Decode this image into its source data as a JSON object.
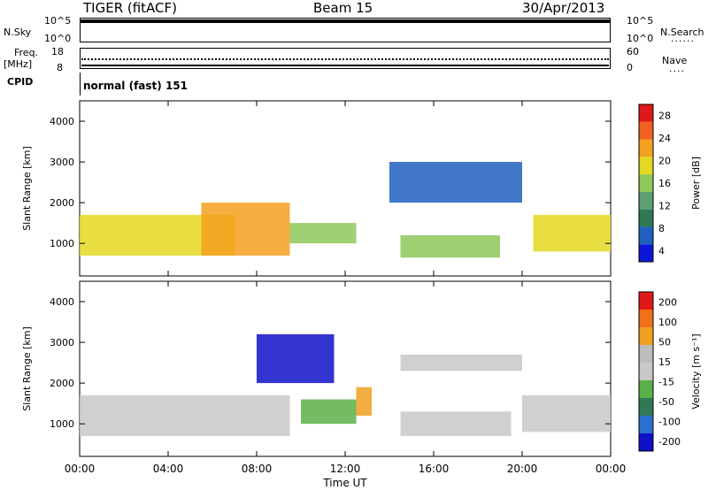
{
  "header": {
    "radar": "TIGER (fitACF)",
    "beam": "Beam 15",
    "date": "30/Apr/2013"
  },
  "summary": {
    "nsky_label": "N.Sky",
    "nsearch_label": "N.Search",
    "freq_label_1": "Freq.",
    "freq_label_2": "[MHz]",
    "nave_label": "Nave",
    "cpid_label": "CPID",
    "cpid_text": "normal (fast) 151",
    "noise_left_ticks": [
      "10^5",
      "10^0"
    ],
    "noise_right_ticks": [
      "10^5",
      "10^0"
    ],
    "freq_left_ticks": [
      "18",
      "8"
    ],
    "nave_right_ticks": [
      "60",
      "0"
    ]
  },
  "chart_data": [
    {
      "type": "heatmap",
      "ylabel": "Slant Range [km]",
      "y_ticks": [
        "1000",
        "2000",
        "3000",
        "4000"
      ],
      "ylim": [
        200,
        4500
      ],
      "colorbar_label": "Power [dB]",
      "colorbar_ticks": [
        "28",
        "24",
        "20",
        "16",
        "12",
        "8",
        "4"
      ],
      "colors": [
        "#0a16d8",
        "#2060c0",
        "#2f7a55",
        "#5aa070",
        "#8ec85a",
        "#e4d820",
        "#f4a020",
        "#f06020",
        "#e01818"
      ],
      "bands": [
        {
          "x0": 0.0,
          "x1": 7.0,
          "y0": 700,
          "y1": 1700,
          "level": 5
        },
        {
          "x0": 5.5,
          "x1": 9.5,
          "y0": 700,
          "y1": 2000,
          "level": 6
        },
        {
          "x0": 9.5,
          "x1": 12.5,
          "y0": 1000,
          "y1": 1500,
          "level": 4
        },
        {
          "x0": 14.5,
          "x1": 19.0,
          "y0": 650,
          "y1": 1200,
          "level": 4
        },
        {
          "x0": 14.0,
          "x1": 20.0,
          "y0": 2000,
          "y1": 3000,
          "level": 1
        },
        {
          "x0": 20.5,
          "x1": 24.0,
          "y0": 800,
          "y1": 1700,
          "level": 5
        }
      ]
    },
    {
      "type": "heatmap",
      "ylabel": "Slant Range [km]",
      "y_ticks": [
        "1000",
        "2000",
        "3000",
        "4000"
      ],
      "ylim": [
        200,
        4500
      ],
      "colorbar_label": "Velocity [m s⁻¹]",
      "colorbar_ticks": [
        "200",
        "100",
        "50",
        "15",
        "-15",
        "-50",
        "-100",
        "-200"
      ],
      "colors": [
        "#1010c8",
        "#2b6fd0",
        "#2f7a55",
        "#5ab048",
        "#c8c8c8",
        "#bdbdbd",
        "#f0a020",
        "#f07018",
        "#e01818"
      ],
      "bands": [
        {
          "x0": 0.0,
          "x1": 9.5,
          "y0": 700,
          "y1": 1700,
          "level": 4
        },
        {
          "x0": 8.0,
          "x1": 11.5,
          "y0": 2000,
          "y1": 3200,
          "level": 0
        },
        {
          "x0": 10.0,
          "x1": 12.5,
          "y0": 1000,
          "y1": 1600,
          "level": 3
        },
        {
          "x0": 12.5,
          "x1": 13.2,
          "y0": 1200,
          "y1": 1900,
          "level": 6
        },
        {
          "x0": 14.5,
          "x1": 19.5,
          "y0": 700,
          "y1": 1300,
          "level": 4
        },
        {
          "x0": 14.5,
          "x1": 20.0,
          "y0": 2300,
          "y1": 2700,
          "level": 4
        },
        {
          "x0": 20.0,
          "x1": 24.0,
          "y0": 800,
          "y1": 1700,
          "level": 4
        }
      ]
    }
  ],
  "x_ticks": [
    "00:00",
    "04:00",
    "08:00",
    "12:00",
    "16:00",
    "20:00",
    "00:00"
  ],
  "x_label": "Time UT"
}
